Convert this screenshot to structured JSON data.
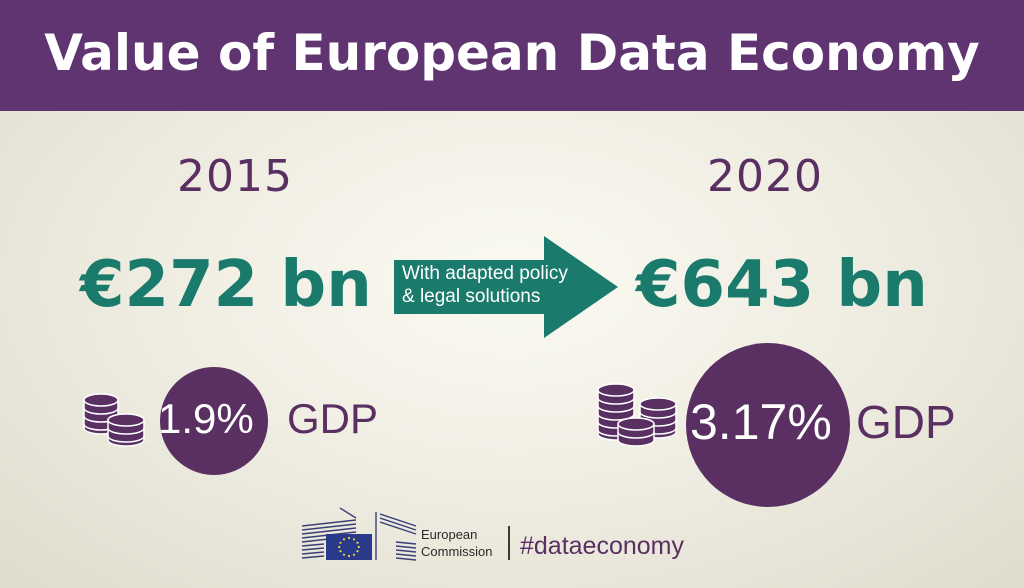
{
  "title": "Value of European Data Economy",
  "colors": {
    "header_bg": "#5f3470",
    "purple": "#5a2f62",
    "teal": "#1a7b6d"
  },
  "left": {
    "year": "2015",
    "value": "€272 bn",
    "gdp_percent": "1.9%",
    "gdp_label": "GDP",
    "icon": "coin-stack-icon"
  },
  "arrow": {
    "line1": "With adapted policy",
    "line2": "& legal solutions",
    "icon": "right-arrow-icon"
  },
  "right": {
    "year": "2020",
    "value": "€643 bn",
    "gdp_percent": "3.17%",
    "gdp_label": "GDP",
    "icon": "coin-stack-icon"
  },
  "footer": {
    "org_line1": "European",
    "org_line2": "Commission",
    "hashtag": "#dataeconomy",
    "logo_icon": "european-commission-logo"
  }
}
